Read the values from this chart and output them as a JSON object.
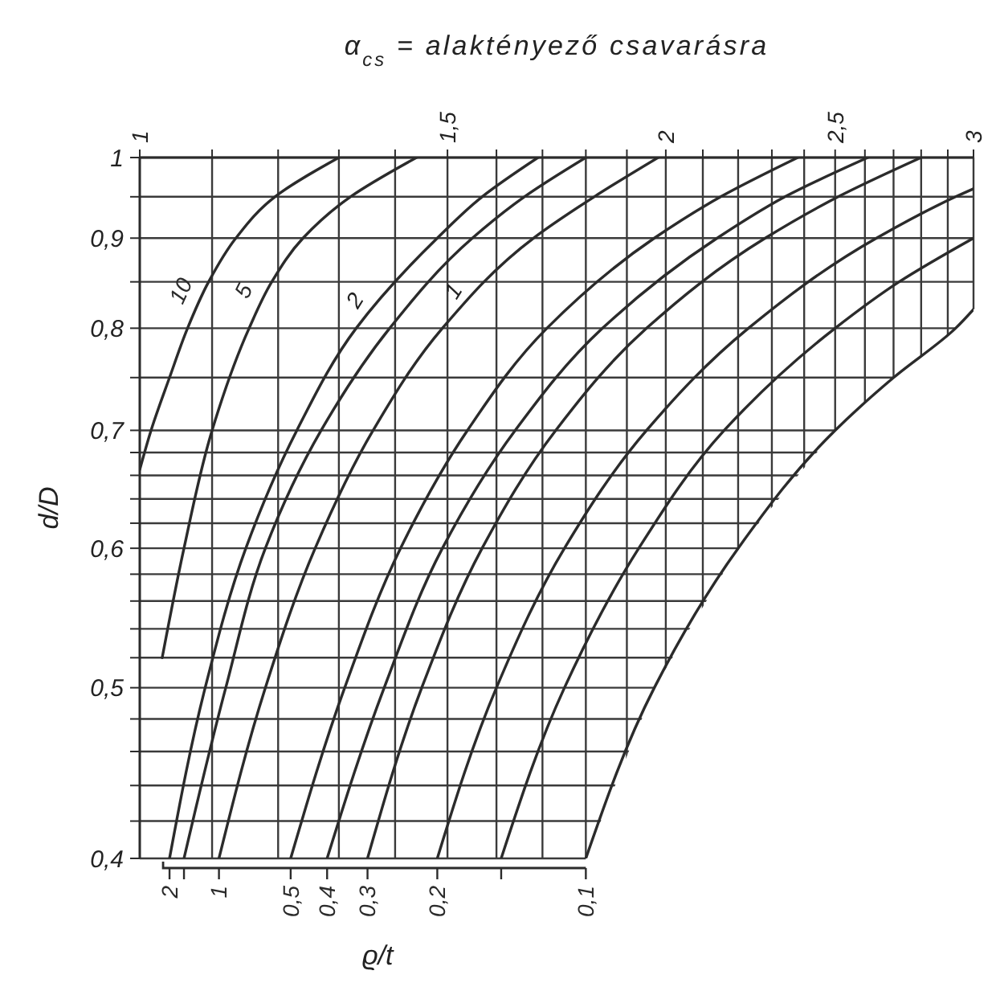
{
  "chart_data": {
    "type": "line",
    "xlabel": "α$_{cs}$ = alaktényező csavarásra",
    "ylabel": "d/D",
    "log": "xy",
    "grid": true,
    "legend": "bottom",
    "legend_title": "ϱ/t",
    "xlim": [
      1,
      3
    ],
    "xticks": [
      1,
      {
        "value": 1.1,
        "label": null
      },
      {
        "value": 1.2,
        "label": null
      },
      {
        "value": 1.3,
        "label": null
      },
      {
        "value": 1.4,
        "label": null
      },
      {
        "value": 1.5,
        "label": "1,5"
      },
      {
        "value": 1.6,
        "label": null
      },
      {
        "value": 1.7,
        "label": null
      },
      {
        "value": 1.8,
        "label": null
      },
      {
        "value": 1.9,
        "label": null
      },
      2,
      {
        "value": 2.1,
        "label": null
      },
      {
        "value": 2.2,
        "label": null
      },
      {
        "value": 2.3,
        "label": null
      },
      {
        "value": 2.4,
        "label": null
      },
      {
        "value": 2.5,
        "label": "2,5"
      },
      {
        "value": 2.6,
        "label": null
      },
      {
        "value": 2.7,
        "label": null
      },
      {
        "value": 2.8,
        "label": null
      },
      {
        "value": 2.9,
        "label": null
      },
      3
    ],
    "ylim": [
      0.4,
      1
    ],
    "yticks": [
      {
        "value": 0.4,
        "label": "0,4"
      },
      {
        "value": 0.42,
        "label": null
      },
      {
        "value": 0.44,
        "label": null
      },
      {
        "value": 0.46,
        "label": null
      },
      {
        "value": 0.48,
        "label": null
      },
      {
        "value": 0.5,
        "label": "0,5"
      },
      {
        "value": 0.52,
        "label": null
      },
      {
        "value": 0.54,
        "label": null
      },
      {
        "value": 0.56,
        "label": null
      },
      {
        "value": 0.58,
        "label": null
      },
      {
        "value": 0.6,
        "label": "0,6"
      },
      {
        "value": 0.62,
        "label": null
      },
      {
        "value": 0.64,
        "label": null
      },
      {
        "value": 0.66,
        "label": null
      },
      {
        "value": 0.68,
        "label": null
      },
      {
        "value": 0.7,
        "label": "0,7"
      },
      {
        "value": 0.75,
        "label": null
      },
      {
        "value": 0.8,
        "label": "0,8"
      },
      {
        "value": 0.85,
        "label": null
      },
      {
        "value": 0.9,
        "label": "0,9"
      },
      {
        "value": 0.95,
        "label": null
      },
      1
    ],
    "annotations": [
      {
        "text": "2",
        "x": 1.37,
        "y": 0.83
      },
      {
        "text": "1",
        "x": 1.56,
        "y": 0.84
      }
    ],
    "series": [
      {
        "name": "10",
        "color": "#2b2b2b",
        "x": [
          1.0,
          1.015,
          1.04,
          1.065,
          1.095,
          1.135,
          1.195,
          1.3
        ],
        "values": [
          0.665,
          0.7,
          0.75,
          0.8,
          0.85,
          0.9,
          0.95,
          1.0
        ]
      },
      {
        "name": "5",
        "color": "#2b2b2b",
        "x": [
          1.03,
          1.06,
          1.1,
          1.155,
          1.19,
          1.24,
          1.32,
          1.44
        ],
        "values": [
          0.52,
          0.6,
          0.7,
          0.8,
          0.85,
          0.9,
          0.95,
          1.0
        ]
      },
      {
        "name": "2",
        "color": "#2b2b2b",
        "x": [
          1.04,
          1.09,
          1.15,
          1.23,
          1.33,
          1.48,
          1.57,
          1.69
        ],
        "values": [
          0.4,
          0.5,
          0.6,
          0.7,
          0.8,
          0.9,
          0.95,
          1.0
        ]
      },
      {
        "color": "#2b2b2b",
        "x": [
          1.06,
          1.12,
          1.18,
          1.27,
          1.39,
          1.55,
          1.66,
          1.8
        ],
        "values": [
          0.4,
          0.5,
          0.6,
          0.7,
          0.8,
          0.9,
          0.95,
          1.0
        ]
      },
      {
        "name": "1",
        "color": "#2b2b2b",
        "x": [
          1.11,
          1.18,
          1.26,
          1.36,
          1.49,
          1.68,
          1.82,
          1.98
        ],
        "values": [
          0.4,
          0.5,
          0.6,
          0.7,
          0.8,
          0.9,
          0.95,
          1.0
        ]
      },
      {
        "name": "0,5",
        "color": "#2b2b2b",
        "x": [
          1.22,
          1.31,
          1.41,
          1.54,
          1.71,
          1.97,
          2.15,
          2.38
        ],
        "values": [
          0.4,
          0.5,
          0.6,
          0.7,
          0.8,
          0.9,
          0.95,
          1.0
        ]
      },
      {
        "name": "0,4",
        "color": "#2b2b2b",
        "x": [
          1.28,
          1.38,
          1.49,
          1.64,
          1.84,
          2.14,
          2.34,
          2.61
        ],
        "values": [
          0.4,
          0.5,
          0.6,
          0.7,
          0.8,
          0.9,
          0.95,
          1.0
        ]
      },
      {
        "name": "0,3",
        "color": "#2b2b2b",
        "x": [
          1.35,
          1.45,
          1.57,
          1.73,
          1.95,
          2.28,
          2.51,
          2.8
        ],
        "values": [
          0.4,
          0.5,
          0.6,
          0.7,
          0.8,
          0.9,
          0.95,
          1.0
        ]
      },
      {
        "name": "0,2",
        "color": "#2b2b2b",
        "x": [
          1.48,
          1.6,
          1.75,
          1.95,
          2.23,
          2.64,
          2.93,
          3.0
        ],
        "values": [
          0.4,
          0.5,
          0.6,
          0.7,
          0.8,
          0.9,
          0.95,
          0.96
        ]
      },
      {
        "color": "#2b2b2b",
        "x": [
          1.61,
          1.75,
          1.93,
          2.16,
          2.5,
          2.72,
          3.0
        ],
        "values": [
          0.4,
          0.5,
          0.6,
          0.7,
          0.8,
          0.85,
          0.9
        ]
      },
      {
        "name": "0,1",
        "color": "#2b2b2b",
        "x": [
          1.8,
          1.97,
          2.2,
          2.5,
          2.7,
          2.93,
          3.0
        ],
        "values": [
          0.4,
          0.5,
          0.6,
          0.7,
          0.75,
          0.8,
          0.82
        ]
      }
    ]
  }
}
